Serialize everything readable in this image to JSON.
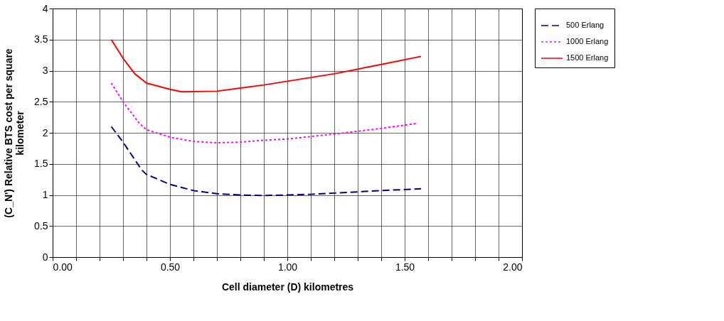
{
  "chart_data": {
    "type": "line",
    "xlabel": "Cell diameter (D) kilometres",
    "ylabel": "(C_N') Relative BTS cost per square kilometer",
    "xlim": [
      0,
      2
    ],
    "ylim": [
      0,
      4
    ],
    "xticks": [
      {
        "value": 0,
        "label": "0.00"
      },
      {
        "value": 0.1,
        "label": null
      },
      {
        "value": 0.2,
        "label": null
      },
      {
        "value": 0.3,
        "label": null
      },
      {
        "value": 0.4,
        "label": null
      },
      {
        "value": 0.5,
        "label": "0.50"
      },
      {
        "value": 0.6,
        "label": null
      },
      {
        "value": 0.7,
        "label": null
      },
      {
        "value": 0.8,
        "label": null
      },
      {
        "value": 0.9,
        "label": null
      },
      {
        "value": 1,
        "label": "1.00"
      },
      {
        "value": 1.1,
        "label": null
      },
      {
        "value": 1.2,
        "label": null
      },
      {
        "value": 1.3,
        "label": null
      },
      {
        "value": 1.4,
        "label": null
      },
      {
        "value": 1.5,
        "label": "1.50"
      },
      {
        "value": 1.6,
        "label": null
      },
      {
        "value": 1.7,
        "label": null
      },
      {
        "value": 1.8,
        "label": null
      },
      {
        "value": 1.9,
        "label": null
      },
      {
        "value": 2,
        "label": "2.00"
      }
    ],
    "yticks": [
      0,
      0.5,
      1,
      1.5,
      2,
      2.5,
      3,
      3.5,
      4
    ],
    "grid": true,
    "legend": "right",
    "marker": "none",
    "series": [
      {
        "name": "500 Erlang",
        "color": "#000080",
        "line_style": "dashed",
        "x": [
          0.25,
          0.3,
          0.38,
          0.4,
          0.5,
          0.6,
          0.7,
          0.8,
          0.9,
          1.0,
          1.1,
          1.2,
          1.4,
          1.57
        ],
        "values": [
          2.1,
          1.85,
          1.4,
          1.33,
          1.17,
          1.07,
          1.02,
          1.0,
          0.99,
          1.0,
          1.01,
          1.03,
          1.07,
          1.1
        ]
      },
      {
        "name": "1000 Erlang",
        "color": "#ff00ff",
        "line_style": "dotted",
        "x": [
          0.25,
          0.3,
          0.37,
          0.4,
          0.5,
          0.6,
          0.7,
          0.8,
          0.9,
          1.0,
          1.2,
          1.4,
          1.55
        ],
        "values": [
          2.8,
          2.5,
          2.15,
          2.05,
          1.93,
          1.86,
          1.84,
          1.85,
          1.88,
          1.9,
          1.98,
          2.07,
          2.15
        ]
      },
      {
        "name": "1500 Erlang",
        "color": "#ff0000",
        "line_style": "solid",
        "x": [
          0.25,
          0.3,
          0.35,
          0.4,
          0.5,
          0.55,
          0.7,
          0.8,
          0.9,
          1.0,
          1.2,
          1.4,
          1.57
        ],
        "values": [
          3.5,
          3.2,
          2.95,
          2.8,
          2.7,
          2.66,
          2.67,
          2.72,
          2.77,
          2.83,
          2.95,
          3.1,
          3.23
        ]
      }
    ]
  }
}
